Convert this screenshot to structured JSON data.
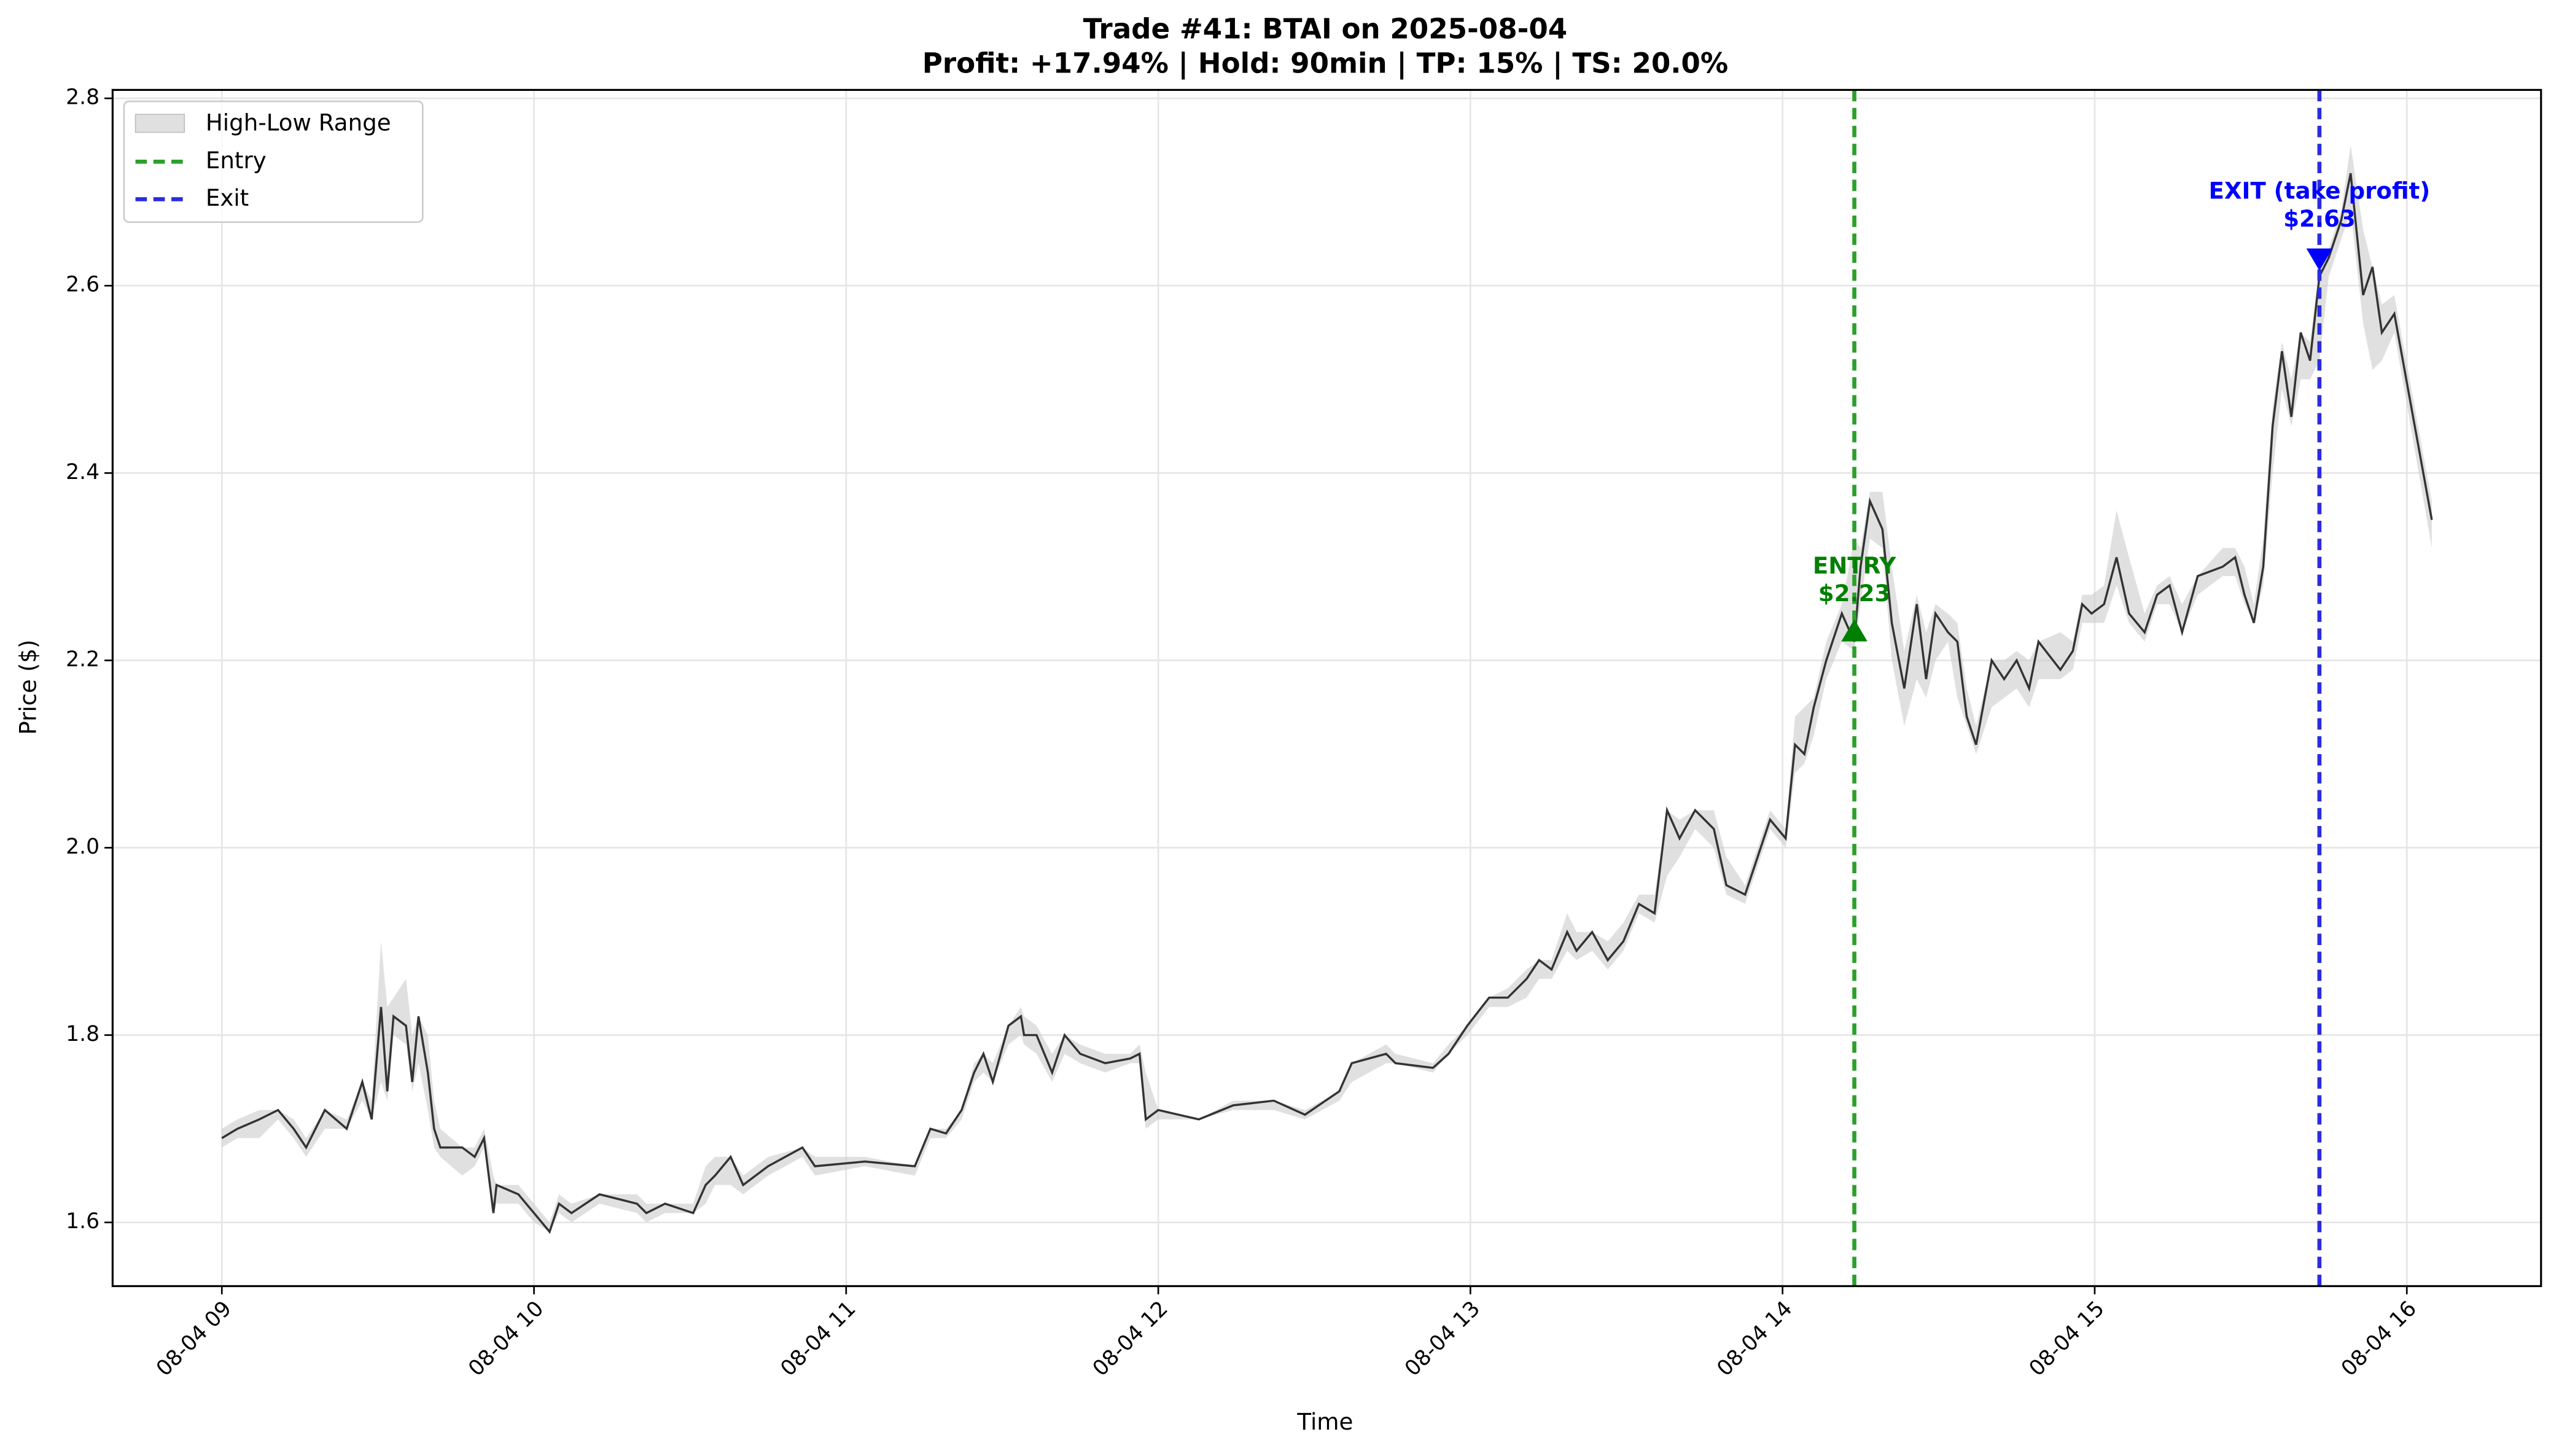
{
  "chart_data": {
    "type": "line",
    "title": "Trade #41: BTAI on 2025-08-04",
    "subtitle": "Profit: +17.94% | Hold: 90min | TP: 15% | TS: 20.0%",
    "x_label": "Time",
    "y_label": "Price ($)",
    "x": [
      9.0,
      9.05,
      9.12,
      9.18,
      9.23,
      9.27,
      9.33,
      9.4,
      9.45,
      9.48,
      9.51,
      9.53,
      9.55,
      9.59,
      9.61,
      9.63,
      9.66,
      9.68,
      9.7,
      9.77,
      9.81,
      9.84,
      9.87,
      9.88,
      9.95,
      10.0,
      10.05,
      10.08,
      10.12,
      10.21,
      10.33,
      10.36,
      10.42,
      10.51,
      10.55,
      10.58,
      10.63,
      10.67,
      10.75,
      10.86,
      10.9,
      11.06,
      11.22,
      11.27,
      11.32,
      11.37,
      11.41,
      11.44,
      11.47,
      11.52,
      11.56,
      11.57,
      11.61,
      11.66,
      11.7,
      11.75,
      11.83,
      11.91,
      11.94,
      11.96,
      12.0,
      12.13,
      12.24,
      12.37,
      12.47,
      12.58,
      12.62,
      12.73,
      12.76,
      12.88,
      12.93,
      12.99,
      13.06,
      13.12,
      13.18,
      13.22,
      13.26,
      13.31,
      13.34,
      13.39,
      13.44,
      13.49,
      13.54,
      13.59,
      13.63,
      13.67,
      13.72,
      13.78,
      13.82,
      13.88,
      13.96,
      14.01,
      14.04,
      14.07,
      14.1,
      14.14,
      14.19,
      14.23,
      14.25,
      14.28,
      14.32,
      14.35,
      14.39,
      14.43,
      14.46,
      14.49,
      14.53,
      14.56,
      14.59,
      14.62,
      14.67,
      14.71,
      14.75,
      14.79,
      14.82,
      14.89,
      14.93,
      14.96,
      14.99,
      15.03,
      15.07,
      15.11,
      15.16,
      15.2,
      15.24,
      15.28,
      15.33,
      15.41,
      15.45,
      15.48,
      15.51,
      15.54,
      15.57,
      15.6,
      15.63,
      15.66,
      15.69,
      15.72,
      15.75,
      15.79,
      15.82,
      15.86,
      15.89,
      15.92,
      15.96,
      16.08
    ],
    "values": [
      1.69,
      1.7,
      1.71,
      1.72,
      1.7,
      1.68,
      1.72,
      1.7,
      1.75,
      1.71,
      1.83,
      1.74,
      1.82,
      1.81,
      1.75,
      1.82,
      1.76,
      1.7,
      1.68,
      1.68,
      1.67,
      1.69,
      1.61,
      1.64,
      1.63,
      1.61,
      1.59,
      1.62,
      1.61,
      1.63,
      1.62,
      1.61,
      1.62,
      1.61,
      1.64,
      1.65,
      1.67,
      1.64,
      1.66,
      1.68,
      1.66,
      1.665,
      1.66,
      1.7,
      1.695,
      1.72,
      1.76,
      1.78,
      1.75,
      1.81,
      1.82,
      1.8,
      1.8,
      1.76,
      1.8,
      1.78,
      1.77,
      1.775,
      1.78,
      1.71,
      1.72,
      1.71,
      1.725,
      1.73,
      1.715,
      1.74,
      1.77,
      1.78,
      1.77,
      1.765,
      1.78,
      1.81,
      1.84,
      1.84,
      1.86,
      1.88,
      1.87,
      1.91,
      1.89,
      1.91,
      1.88,
      1.9,
      1.94,
      1.93,
      2.04,
      2.01,
      2.04,
      2.02,
      1.96,
      1.95,
      2.03,
      2.01,
      2.11,
      2.1,
      2.15,
      2.2,
      2.25,
      2.22,
      2.3,
      2.37,
      2.34,
      2.24,
      2.17,
      2.26,
      2.18,
      2.25,
      2.23,
      2.22,
      2.14,
      2.11,
      2.2,
      2.18,
      2.2,
      2.17,
      2.22,
      2.19,
      2.21,
      2.26,
      2.25,
      2.26,
      2.31,
      2.25,
      2.23,
      2.27,
      2.28,
      2.23,
      2.29,
      2.3,
      2.31,
      2.27,
      2.24,
      2.3,
      2.45,
      2.53,
      2.46,
      2.55,
      2.52,
      2.61,
      2.63,
      2.67,
      2.72,
      2.59,
      2.62,
      2.55,
      2.57,
      2.35
    ],
    "color": "#333333",
    "band": {
      "name": "High-Low Range",
      "color": "#cccccc",
      "high": [
        1.7,
        1.71,
        1.72,
        1.72,
        1.71,
        1.69,
        1.72,
        1.71,
        1.75,
        1.73,
        1.9,
        1.83,
        1.84,
        1.86,
        1.8,
        1.82,
        1.8,
        1.73,
        1.7,
        1.68,
        1.68,
        1.7,
        1.65,
        1.64,
        1.64,
        1.62,
        1.6,
        1.63,
        1.62,
        1.63,
        1.63,
        1.62,
        1.62,
        1.62,
        1.66,
        1.67,
        1.67,
        1.65,
        1.67,
        1.68,
        1.67,
        1.67,
        1.66,
        1.7,
        1.7,
        1.72,
        1.77,
        1.78,
        1.77,
        1.81,
        1.83,
        1.82,
        1.81,
        1.78,
        1.8,
        1.79,
        1.78,
        1.78,
        1.79,
        1.76,
        1.72,
        1.71,
        1.73,
        1.73,
        1.72,
        1.74,
        1.77,
        1.79,
        1.78,
        1.77,
        1.79,
        1.81,
        1.84,
        1.85,
        1.87,
        1.88,
        1.88,
        1.93,
        1.91,
        1.91,
        1.9,
        1.92,
        1.95,
        1.95,
        2.04,
        2.03,
        2.04,
        2.04,
        1.99,
        1.96,
        2.04,
        2.02,
        2.14,
        2.15,
        2.16,
        2.22,
        2.26,
        2.33,
        2.32,
        2.38,
        2.38,
        2.3,
        2.21,
        2.27,
        2.23,
        2.26,
        2.25,
        2.24,
        2.17,
        2.13,
        2.2,
        2.2,
        2.21,
        2.2,
        2.22,
        2.23,
        2.22,
        2.27,
        2.27,
        2.28,
        2.36,
        2.31,
        2.25,
        2.28,
        2.29,
        2.26,
        2.29,
        2.32,
        2.32,
        2.3,
        2.26,
        2.33,
        2.47,
        2.54,
        2.5,
        2.55,
        2.54,
        2.62,
        2.64,
        2.68,
        2.75,
        2.66,
        2.62,
        2.58,
        2.59,
        2.37
      ],
      "low": [
        1.68,
        1.69,
        1.69,
        1.71,
        1.69,
        1.67,
        1.7,
        1.7,
        1.73,
        1.71,
        1.75,
        1.73,
        1.8,
        1.79,
        1.74,
        1.77,
        1.72,
        1.68,
        1.67,
        1.65,
        1.66,
        1.68,
        1.61,
        1.62,
        1.62,
        1.6,
        1.59,
        1.61,
        1.6,
        1.62,
        1.61,
        1.6,
        1.61,
        1.61,
        1.62,
        1.64,
        1.64,
        1.63,
        1.65,
        1.67,
        1.65,
        1.66,
        1.65,
        1.69,
        1.69,
        1.71,
        1.75,
        1.76,
        1.75,
        1.79,
        1.8,
        1.79,
        1.78,
        1.75,
        1.78,
        1.77,
        1.76,
        1.77,
        1.77,
        1.7,
        1.71,
        1.71,
        1.72,
        1.72,
        1.71,
        1.73,
        1.75,
        1.77,
        1.77,
        1.76,
        1.78,
        1.8,
        1.83,
        1.83,
        1.84,
        1.86,
        1.86,
        1.89,
        1.88,
        1.89,
        1.87,
        1.89,
        1.93,
        1.92,
        1.97,
        1.99,
        2.02,
        2.0,
        1.95,
        1.94,
        2.02,
        2.0,
        2.08,
        2.09,
        2.12,
        2.18,
        2.22,
        2.21,
        2.26,
        2.33,
        2.32,
        2.2,
        2.13,
        2.18,
        2.16,
        2.2,
        2.22,
        2.16,
        2.13,
        2.1,
        2.15,
        2.16,
        2.17,
        2.15,
        2.18,
        2.18,
        2.19,
        2.24,
        2.24,
        2.24,
        2.28,
        2.24,
        2.22,
        2.26,
        2.26,
        2.23,
        2.27,
        2.29,
        2.29,
        2.26,
        2.24,
        2.28,
        2.4,
        2.49,
        2.45,
        2.5,
        2.5,
        2.52,
        2.61,
        2.65,
        2.68,
        2.56,
        2.51,
        2.52,
        2.55,
        2.32
      ]
    },
    "events": [
      {
        "name": "Entry",
        "x": 14.23,
        "color": "#2ca02c",
        "label": "ENTRY",
        "price": 2.23,
        "price_label": "$2.23",
        "marker_color": "#008000",
        "marker": "up"
      },
      {
        "name": "Exit",
        "x": 15.72,
        "color": "#2b2bdf",
        "label": "EXIT (take profit)",
        "price": 2.63,
        "price_label": "$2.63",
        "marker_color": "#0000ff",
        "marker": "down"
      }
    ],
    "xlim": [
      8.65,
      16.43
    ],
    "xticks": [
      {
        "value": 9,
        "label": "08-04 09"
      },
      {
        "value": 10,
        "label": "08-04 10"
      },
      {
        "value": 11,
        "label": "08-04 11"
      },
      {
        "value": 12,
        "label": "08-04 12"
      },
      {
        "value": 13,
        "label": "08-04 13"
      },
      {
        "value": 14,
        "label": "08-04 14"
      },
      {
        "value": 15,
        "label": "08-04 15"
      },
      {
        "value": 16,
        "label": "08-04 16"
      }
    ],
    "ylim": [
      1.532,
      2.809
    ],
    "yticks": [
      1.6,
      1.8,
      {
        "value": 2.0,
        "label": "2.0"
      },
      2.2,
      2.4,
      2.6,
      2.8
    ],
    "grid": true,
    "legend": "upper left"
  }
}
